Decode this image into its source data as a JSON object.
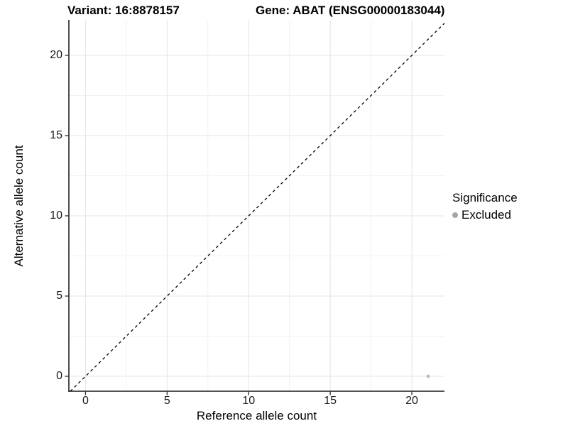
{
  "chart_data": {
    "type": "scatter",
    "title_left": "Variant: 16:8878157",
    "title_right": "Gene: ABAT (ENSG00000183044)",
    "xlabel": "Reference allele count",
    "ylabel": "Alternative allele count",
    "x_ticks": [
      0,
      5,
      10,
      15,
      20
    ],
    "y_ticks": [
      0,
      5,
      10,
      15,
      20
    ],
    "x_minor_gridlines": [
      2.5,
      7.5,
      12.5,
      17.5
    ],
    "y_minor_gridlines": [
      2.5,
      7.5,
      12.5,
      17.5
    ],
    "xlim": [
      -1.02,
      22.0
    ],
    "ylim": [
      -0.93,
      22.21
    ],
    "grid": "major and minor gridlines on, white panel background",
    "reference_line": {
      "type": "identity y=x",
      "style": "dashed",
      "color": "#000000"
    },
    "series": [
      {
        "name": "Excluded",
        "marker": "circle",
        "color": "#b9b9b9",
        "points": [
          {
            "x": 21,
            "y": 0
          }
        ]
      }
    ],
    "legend": {
      "position": "right",
      "title": "Significance",
      "items": [
        {
          "label": "Excluded",
          "color": "#a6a6a6"
        }
      ]
    },
    "style": {
      "background": "#ffffff",
      "grid_major_color": "#e4e4e4",
      "grid_minor_color": "#f2f2f2",
      "axis_line_color": "#3a3a3a",
      "tick_text_color": "#1a1a1a"
    }
  }
}
